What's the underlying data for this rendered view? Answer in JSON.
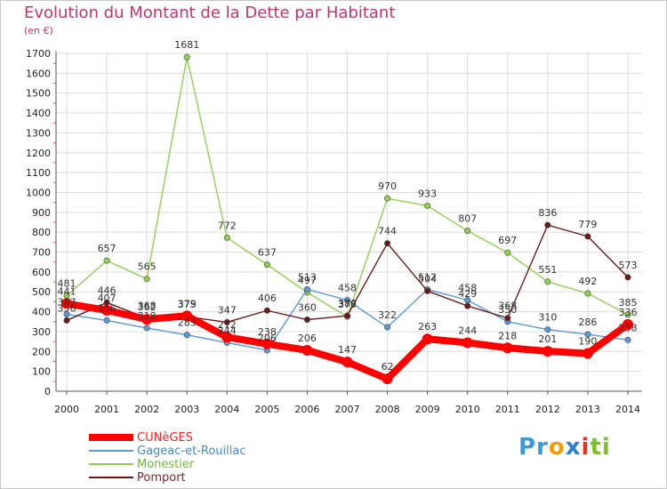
{
  "title": "Evolution du Montant de la Dette par Habitant",
  "subtitle": "(en €)",
  "logo": {
    "parts": [
      "Pr",
      "o",
      "x",
      "i",
      "ti"
    ],
    "colors": [
      "#3a9ad9",
      "#f39c12",
      "#2a7fd4",
      "#e2352a",
      "#7bbf2a"
    ]
  },
  "chart_data": {
    "type": "line",
    "x": [
      "2000",
      "2001",
      "2002",
      "2003",
      "2004",
      "2005",
      "2006",
      "2007",
      "2008",
      "2009",
      "2010",
      "2011",
      "2012",
      "2013",
      "2014"
    ],
    "ylim": [
      0,
      1700
    ],
    "yticks": [
      0,
      100,
      200,
      300,
      400,
      500,
      600,
      700,
      800,
      900,
      1000,
      1100,
      1200,
      1300,
      1400,
      1500,
      1600,
      1700
    ],
    "grid": true,
    "legend_position": "bottom-left",
    "series": [
      {
        "name": "CUNèGES",
        "color": "#ff0000",
        "values": [
          441,
          407,
          362,
          379,
          272,
          238,
          206,
          147,
          62,
          263,
          244,
          218,
          201,
          190,
          336
        ]
      },
      {
        "name": "Gageac-et-Rouillac",
        "color": "#5a9ad3",
        "values": [
          387,
          356,
          318,
          283,
          244,
          206,
          513,
          458,
          322,
          512,
          458,
          350,
          310,
          286,
          258
        ]
      },
      {
        "name": "Monestier",
        "color": "#8fd14f",
        "values": [
          481,
          657,
          565,
          1681,
          772,
          637,
          497,
          375,
          970,
          933,
          807,
          697,
          551,
          492,
          385
        ]
      },
      {
        "name": "Pomport",
        "color": "#6b1a1a",
        "values": [
          356,
          446,
          368,
          375,
          347,
          406,
          360,
          380,
          744,
          504,
          429,
          368,
          836,
          779,
          573
        ]
      }
    ],
    "labels": {
      "CUNèGES": [
        "441",
        "407",
        "362",
        "379",
        "272",
        "238",
        "206",
        "147",
        "62",
        "263",
        "244",
        "218",
        "201",
        "190",
        "336"
      ],
      "Gageac-et-Rouillac": [
        "387",
        "356",
        "318",
        "283",
        "244",
        "206",
        "513",
        "458",
        "322",
        "512",
        "458",
        "350",
        "310",
        "286",
        "258"
      ],
      "Monestier": [
        "481",
        "657",
        "565",
        "1681",
        "772",
        "637",
        "497",
        "375",
        "970",
        "933",
        "807",
        "697",
        "551",
        "492",
        "385"
      ],
      "Pomport": [
        "356",
        "446",
        "368",
        "375",
        "347",
        "406",
        "360",
        "380",
        "744",
        "504",
        "429",
        "368",
        "836",
        "779",
        "573"
      ]
    }
  }
}
